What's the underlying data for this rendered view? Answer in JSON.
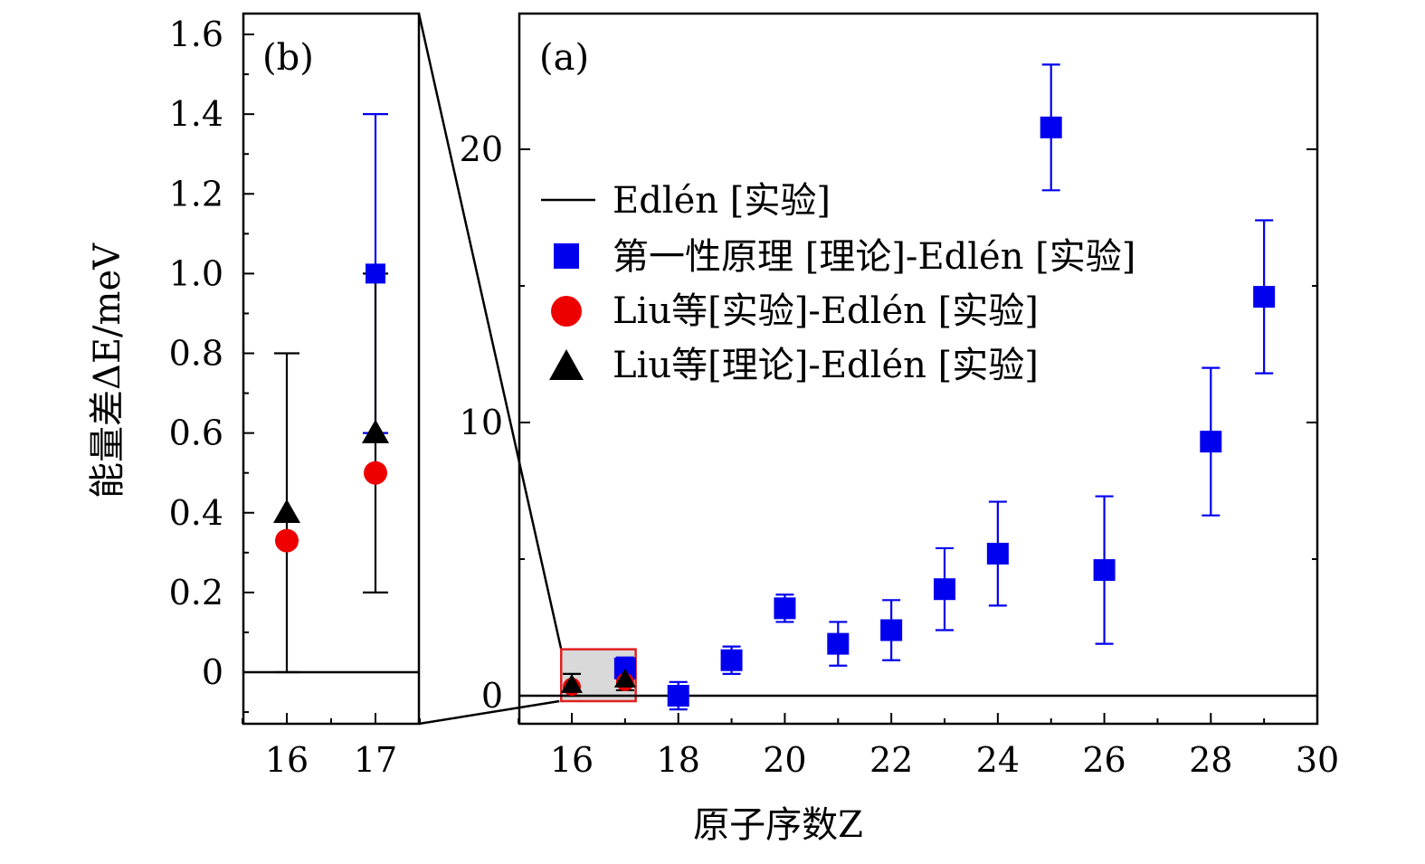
{
  "chart_data": [
    {
      "panel": "(a)",
      "type": "scatter",
      "xlim": [
        15,
        30
      ],
      "ylim": [
        -1,
        25
      ],
      "x_ticks": [
        16,
        18,
        20,
        22,
        24,
        26,
        28,
        30
      ],
      "y_ticks": [
        0,
        10,
        20
      ],
      "xlabel": "原子序数Z",
      "reference_line": {
        "name": "Edlén [实验]",
        "y": 0
      },
      "series": [
        {
          "name": "第一性原理 [理论]-Edlén [实验]",
          "marker": "square",
          "color": "#0000ee",
          "points": [
            {
              "x": 17,
              "y": 1.0,
              "err": 0.4
            },
            {
              "x": 18,
              "y": 0.0,
              "err": 0.5
            },
            {
              "x": 19,
              "y": 1.3,
              "err": 0.5
            },
            {
              "x": 20,
              "y": 3.2,
              "err": 0.5
            },
            {
              "x": 21,
              "y": 1.9,
              "err": 0.8
            },
            {
              "x": 22,
              "y": 2.4,
              "err": 1.1
            },
            {
              "x": 23,
              "y": 3.9,
              "err": 1.5
            },
            {
              "x": 24,
              "y": 5.2,
              "err": 1.9
            },
            {
              "x": 25,
              "y": 20.8,
              "err": 2.3
            },
            {
              "x": 26,
              "y": 4.6,
              "err": 2.7
            },
            {
              "x": 28,
              "y": 9.3,
              "err": 2.7
            },
            {
              "x": 29,
              "y": 14.6,
              "err": 2.8
            }
          ]
        },
        {
          "name": "Liu等[实验]-Edlén [实验]",
          "marker": "circle",
          "color": "#ee0000",
          "points": [
            {
              "x": 16,
              "y": 0.33
            },
            {
              "x": 17,
              "y": 0.5
            }
          ]
        },
        {
          "name": "Liu等[理论]-Edlén [实验]",
          "marker": "triangle",
          "color": "#000000",
          "points": [
            {
              "x": 16,
              "y": 0.4,
              "err": 0.4
            },
            {
              "x": 17,
              "y": 0.6,
              "err": 0.4
            }
          ]
        }
      ],
      "zoom_region": {
        "x": [
          15.8,
          17.2
        ],
        "y": [
          0,
          1.7
        ]
      }
    },
    {
      "panel": "(b)",
      "type": "scatter",
      "xlim": [
        15.5,
        17.5
      ],
      "ylim": [
        -0.13,
        1.65
      ],
      "x_ticks": [
        16,
        17
      ],
      "y_ticks": [
        0,
        0.2,
        0.4,
        0.6,
        0.8,
        1.0,
        1.2,
        1.4,
        1.6
      ],
      "y_tick_labels": [
        "0",
        "0.2",
        "0.4",
        "0.6",
        "0.8",
        "1.0",
        "1.2",
        "1.4",
        "1.6"
      ],
      "ylabel": "能量差ΔE/meV",
      "reference_line": {
        "y": 0
      },
      "series": [
        {
          "name": "第一性原理 [理论]-Edlén [实验]",
          "marker": "square",
          "color": "#0000ee",
          "points": [
            {
              "x": 17,
              "y": 1.0,
              "err": 0.4
            }
          ]
        },
        {
          "name": "Liu等[实验]-Edlén [实验]",
          "marker": "circle",
          "color": "#ee0000",
          "points": [
            {
              "x": 16,
              "y": 0.33
            },
            {
              "x": 17,
              "y": 0.5
            }
          ]
        },
        {
          "name": "Liu等[理论]-Edlén [实验]",
          "marker": "triangle",
          "color": "#000000",
          "points": [
            {
              "x": 16,
              "y": 0.4,
              "err": 0.4
            },
            {
              "x": 17,
              "y": 0.6,
              "err": 0.4
            }
          ]
        }
      ]
    }
  ]
}
